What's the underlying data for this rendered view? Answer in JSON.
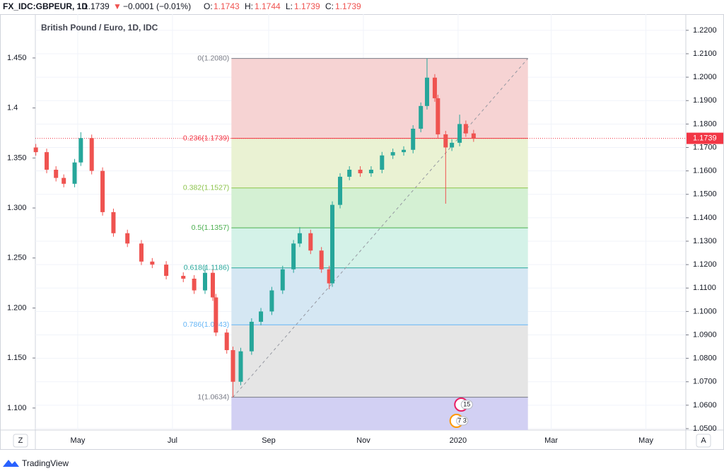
{
  "header": {
    "symbol": "FX_IDC:GBPEUR, 1D",
    "last": "1.1739",
    "arrow": "▼",
    "change": "−0.0001 (−0.01%)",
    "o_label": "O:",
    "open": "1.1743",
    "h_label": "H:",
    "high": "1.1744",
    "l_label": "L:",
    "low": "1.1739",
    "c_label": "C:",
    "close": "1.1739"
  },
  "chart_data": {
    "type": "candlestick",
    "title": "British Pound / Euro, 1D, IDC",
    "up_color": "#26a69a",
    "down_color": "#ef5350",
    "candles": [
      {
        "x": 3,
        "o": 1.17,
        "h": 1.1715,
        "l": 1.1665,
        "c": 1.168
      },
      {
        "x": 10,
        "o": 1.168,
        "h": 1.1695,
        "l": 1.159,
        "c": 1.1605
      },
      {
        "x": 16,
        "o": 1.1605,
        "h": 1.162,
        "l": 1.1555,
        "c": 1.157
      },
      {
        "x": 21,
        "o": 1.157,
        "h": 1.1585,
        "l": 1.153,
        "c": 1.1545
      },
      {
        "x": 28,
        "o": 1.1545,
        "h": 1.1651,
        "l": 1.153,
        "c": 1.1636
      },
      {
        "x": 32,
        "o": 1.1636,
        "h": 1.1765,
        "l": 1.1621,
        "c": 1.174
      },
      {
        "x": 39,
        "o": 1.174,
        "h": 1.1755,
        "l": 1.1585,
        "c": 1.16
      },
      {
        "x": 46,
        "o": 1.16,
        "h": 1.1615,
        "l": 1.1409,
        "c": 1.1424
      },
      {
        "x": 53,
        "o": 1.1424,
        "h": 1.1439,
        "l": 1.1319,
        "c": 1.1334
      },
      {
        "x": 62,
        "o": 1.1334,
        "h": 1.1349,
        "l": 1.1275,
        "c": 1.129
      },
      {
        "x": 71,
        "o": 1.129,
        "h": 1.1305,
        "l": 1.1198,
        "c": 1.1213
      },
      {
        "x": 78,
        "o": 1.1213,
        "h": 1.1228,
        "l": 1.1185,
        "c": 1.12
      },
      {
        "x": 87,
        "o": 1.12,
        "h": 1.1215,
        "l": 1.1137,
        "c": 1.1152
      },
      {
        "x": 98,
        "o": 1.1152,
        "h": 1.1167,
        "l": 1.1125,
        "c": 1.114
      },
      {
        "x": 105,
        "o": 1.114,
        "h": 1.1155,
        "l": 1.1075,
        "c": 1.109
      },
      {
        "x": 112,
        "o": 1.109,
        "h": 1.1195,
        "l": 1.1075,
        "c": 1.1165
      },
      {
        "x": 117,
        "o": 1.1165,
        "h": 1.118,
        "l": 1.1045,
        "c": 1.106
      },
      {
        "x": 119,
        "o": 1.106,
        "h": 1.1075,
        "l": 1.0895,
        "c": 1.091
      },
      {
        "x": 126,
        "o": 1.091,
        "h": 1.0925,
        "l": 1.082,
        "c": 1.0835
      },
      {
        "x": 130,
        "o": 1.0835,
        "h": 1.085,
        "l": 1.0634,
        "c": 1.07
      },
      {
        "x": 135,
        "o": 1.07,
        "h": 1.0845,
        "l": 1.0685,
        "c": 1.083
      },
      {
        "x": 142,
        "o": 1.083,
        "h": 1.0971,
        "l": 1.0815,
        "c": 1.0956
      },
      {
        "x": 148,
        "o": 1.0956,
        "h": 1.1015,
        "l": 1.0941,
        "c": 1.1
      },
      {
        "x": 155,
        "o": 1.1,
        "h": 1.1105,
        "l": 1.0985,
        "c": 1.109
      },
      {
        "x": 162,
        "o": 1.109,
        "h": 1.1195,
        "l": 1.1075,
        "c": 1.118
      },
      {
        "x": 169,
        "o": 1.118,
        "h": 1.1305,
        "l": 1.1165,
        "c": 1.129
      },
      {
        "x": 173,
        "o": 1.129,
        "h": 1.136,
        "l": 1.1275,
        "c": 1.1334
      },
      {
        "x": 180,
        "o": 1.1334,
        "h": 1.1349,
        "l": 1.1245,
        "c": 1.126
      },
      {
        "x": 187,
        "o": 1.126,
        "h": 1.1275,
        "l": 1.1165,
        "c": 1.118
      },
      {
        "x": 192,
        "o": 1.118,
        "h": 1.1195,
        "l": 1.1095,
        "c": 1.112
      },
      {
        "x": 194,
        "o": 1.112,
        "h": 1.147,
        "l": 1.1105,
        "c": 1.1455
      },
      {
        "x": 199,
        "o": 1.1455,
        "h": 1.159,
        "l": 1.144,
        "c": 1.1575
      },
      {
        "x": 205,
        "o": 1.1575,
        "h": 1.162,
        "l": 1.156,
        "c": 1.1605
      },
      {
        "x": 212,
        "o": 1.1605,
        "h": 1.162,
        "l": 1.1575,
        "c": 1.159
      },
      {
        "x": 219,
        "o": 1.159,
        "h": 1.162,
        "l": 1.1575,
        "c": 1.1605
      },
      {
        "x": 226,
        "o": 1.1605,
        "h": 1.1681,
        "l": 1.159,
        "c": 1.1666
      },
      {
        "x": 233,
        "o": 1.1666,
        "h": 1.1695,
        "l": 1.1651,
        "c": 1.168
      },
      {
        "x": 240,
        "o": 1.168,
        "h": 1.1705,
        "l": 1.1665,
        "c": 1.169
      },
      {
        "x": 246,
        "o": 1.169,
        "h": 1.1795,
        "l": 1.1675,
        "c": 1.178
      },
      {
        "x": 251,
        "o": 1.178,
        "h": 1.1892,
        "l": 1.1765,
        "c": 1.1877
      },
      {
        "x": 255,
        "o": 1.1877,
        "h": 1.208,
        "l": 1.1862,
        "c": 1.1998
      },
      {
        "x": 260,
        "o": 1.1998,
        "h": 1.2013,
        "l": 1.1895,
        "c": 1.191
      },
      {
        "x": 262,
        "o": 1.191,
        "h": 1.1925,
        "l": 1.1741,
        "c": 1.1756
      },
      {
        "x": 267,
        "o": 1.1756,
        "h": 1.1771,
        "l": 1.146,
        "c": 1.17
      },
      {
        "x": 271,
        "o": 1.17,
        "h": 1.1735,
        "l": 1.1685,
        "c": 1.172
      },
      {
        "x": 276,
        "o": 1.172,
        "h": 1.184,
        "l": 1.1705,
        "c": 1.18
      },
      {
        "x": 280,
        "o": 1.18,
        "h": 1.1815,
        "l": 1.1745,
        "c": 1.176
      },
      {
        "x": 285,
        "o": 1.176,
        "h": 1.1775,
        "l": 1.1724,
        "c": 1.1739
      }
    ],
    "last_price": 1.1739,
    "last_color": "#f23645",
    "fib": {
      "x": [
        129,
        320
      ],
      "levels": [
        {
          "level": 0,
          "price": 1.208,
          "label": "0(1.2080)",
          "color": "#787b86",
          "fill": "#f6d3d3"
        },
        {
          "level": 0.236,
          "price": 1.1739,
          "label": "0.236(1.1739)",
          "color": "#f23645",
          "fill": "#eaf2d3"
        },
        {
          "level": 0.382,
          "price": 1.1527,
          "label": "0.382(1.1527)",
          "color": "#8bc34a",
          "fill": "#d4f0d3"
        },
        {
          "level": 0.5,
          "price": 1.1357,
          "label": "0.5(1.1357)",
          "color": "#4caf50",
          "fill": "#d4f2e8"
        },
        {
          "level": 0.618,
          "price": 1.1186,
          "label": "0.618(1.1186)",
          "color": "#26a69a",
          "fill": "#d5e7f3"
        },
        {
          "level": 0.786,
          "price": 1.0943,
          "label": "0.786(1.0943)",
          "color": "#64b5f6",
          "fill": "#e5e5e5"
        },
        {
          "level": 1,
          "price": 1.0634,
          "label": "1(1.0634)",
          "color": "#787b86",
          "fill": "#d2d0f3"
        }
      ]
    },
    "trend_line": {
      "x": [
        130,
        320
      ],
      "y": [
        1.0634,
        1.208
      ]
    },
    "events": [
      {
        "x": 277,
        "label": "15"
      },
      {
        "x": 274,
        "label": "7 3"
      }
    ],
    "xlim": [
      2.7,
      421.7
    ],
    "xticks": [
      {
        "value": 30,
        "label": "May"
      },
      {
        "value": 91,
        "label": "Jul"
      },
      {
        "value": 153,
        "label": "Sep"
      },
      {
        "value": 214,
        "label": "Nov"
      },
      {
        "value": 275,
        "label": "2020"
      },
      {
        "value": 335,
        "label": "Mar"
      },
      {
        "value": 396,
        "label": "May"
      }
    ],
    "ylim": [
      1.0494,
      1.2269
    ],
    "yticks": [
      {
        "value": 1.22,
        "label": "1.2200"
      },
      {
        "value": 1.21,
        "label": "1.2100"
      },
      {
        "value": 1.2,
        "label": "1.2000"
      },
      {
        "value": 1.19,
        "label": "1.1900"
      },
      {
        "value": 1.18,
        "label": "1.1800"
      },
      {
        "value": 1.17,
        "label": "1.1700"
      },
      {
        "value": 1.16,
        "label": "1.1600"
      },
      {
        "value": 1.15,
        "label": "1.1500"
      },
      {
        "value": 1.14,
        "label": "1.1400"
      },
      {
        "value": 1.13,
        "label": "1.1300"
      },
      {
        "value": 1.12,
        "label": "1.1200"
      },
      {
        "value": 1.11,
        "label": "1.1100"
      },
      {
        "value": 1.1,
        "label": "1.1000"
      },
      {
        "value": 1.09,
        "label": "1.0900"
      },
      {
        "value": 1.08,
        "label": "1.0800"
      },
      {
        "value": 1.07,
        "label": "1.0700"
      },
      {
        "value": 1.06,
        "label": "1.0600"
      },
      {
        "value": 1.05,
        "label": "1.0500"
      }
    ],
    "y2lim": [
      1.078,
      1.4938
    ],
    "y2ticks": [
      {
        "value": 1.45,
        "label": "1.450"
      },
      1.4,
      {
        "value": 1.35,
        "label": "1.350"
      },
      {
        "value": 1.3,
        "label": "1.300"
      },
      {
        "value": 1.25,
        "label": "1.250"
      },
      {
        "value": 1.2,
        "label": "1.200"
      },
      {
        "value": 1.15,
        "label": "1.150"
      },
      {
        "value": 1.1,
        "label": "1.100"
      }
    ]
  },
  "footer": {
    "left_button": "Z",
    "right_button": "A",
    "brand": "TradingView"
  }
}
